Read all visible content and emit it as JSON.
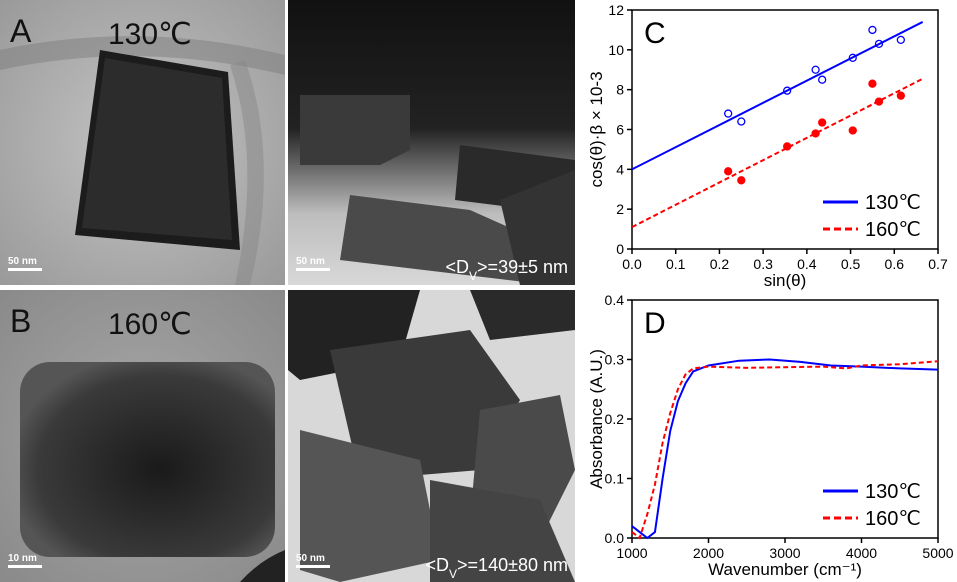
{
  "tem_panels": [
    {
      "letter": "A",
      "temperature": "130℃",
      "scale_bars": [
        "50 nm",
        "50 nm"
      ],
      "size": {
        "before": "<D",
        "sub": "V",
        "after": ">=39±5 nm"
      }
    },
    {
      "letter": "B",
      "temperature": "160℃",
      "scale_bars": [
        "10 nm",
        "50 nm"
      ],
      "size": {
        "before": "<D",
        "sub": "V",
        "after": ">=140±80 nm"
      }
    }
  ],
  "chart_data": [
    {
      "type": "line",
      "panel_label": "C",
      "x_label": "sin(θ)",
      "y_label": "cos(θ)·β × 10-3",
      "xlim": [
        0,
        0.7
      ],
      "xticks": [
        {
          "value": 0,
          "label": "0.0"
        },
        0.1,
        0.2,
        0.3,
        0.4,
        0.5,
        0.6,
        0.7
      ],
      "ylim": [
        0,
        12
      ],
      "yticks": [
        0,
        2,
        4,
        6,
        8,
        10,
        12
      ],
      "legend": "lower right",
      "series": [
        {
          "name": "130℃",
          "color": "#0000ff",
          "dash": false,
          "x": [
            0,
            0.665
          ],
          "values": [
            4.0,
            11.4
          ],
          "marker": "open",
          "points_x": [
            0.22,
            0.25,
            0.355,
            0.42,
            0.435,
            0.505,
            0.55,
            0.565,
            0.615
          ],
          "points_y": [
            6.8,
            6.4,
            7.95,
            9.0,
            8.5,
            9.6,
            11.0,
            10.3,
            10.5
          ]
        },
        {
          "name": "160℃",
          "color": "#ff0000",
          "dash": true,
          "x": [
            0,
            0.665
          ],
          "values": [
            1.1,
            8.55
          ],
          "marker": "filled",
          "points_x": [
            0.22,
            0.25,
            0.355,
            0.42,
            0.435,
            0.505,
            0.55,
            0.565,
            0.615
          ],
          "points_y": [
            3.9,
            3.45,
            5.15,
            5.8,
            6.35,
            5.95,
            8.3,
            7.4,
            7.7
          ]
        }
      ]
    },
    {
      "type": "line",
      "panel_label": "D",
      "x_label": "Wavenumber (cm⁻¹)",
      "y_label": "Absorbance (A.U.)",
      "xlim": [
        1000,
        5000
      ],
      "xticks": [
        1000,
        2000,
        3000,
        4000,
        5000
      ],
      "ylim": [
        0,
        0.4
      ],
      "yticks": [
        {
          "value": 0,
          "label": "0.0"
        },
        0.1,
        0.2,
        0.3,
        0.4
      ],
      "legend": "lower right",
      "series": [
        {
          "name": "130℃",
          "color": "#0000ff",
          "dash": false,
          "x": [
            1000,
            1100,
            1200,
            1300,
            1400,
            1500,
            1600,
            1700,
            1800,
            2000,
            2400,
            2800,
            3200,
            3600,
            4000,
            4500,
            5000
          ],
          "values": [
            0.02,
            0.01,
            0.0,
            0.01,
            0.1,
            0.18,
            0.23,
            0.26,
            0.28,
            0.29,
            0.298,
            0.3,
            0.296,
            0.29,
            0.288,
            0.285,
            0.283
          ]
        },
        {
          "name": "160℃",
          "color": "#ff0000",
          "dash": true,
          "x": [
            1000,
            1100,
            1200,
            1300,
            1400,
            1500,
            1600,
            1700,
            1800,
            2000,
            2500,
            3000,
            3500,
            3800,
            4000,
            4500,
            5000
          ],
          "values": [
            0.01,
            0.0,
            0.04,
            0.09,
            0.16,
            0.21,
            0.25,
            0.275,
            0.285,
            0.288,
            0.286,
            0.287,
            0.288,
            0.285,
            0.29,
            0.292,
            0.297
          ]
        }
      ]
    }
  ]
}
